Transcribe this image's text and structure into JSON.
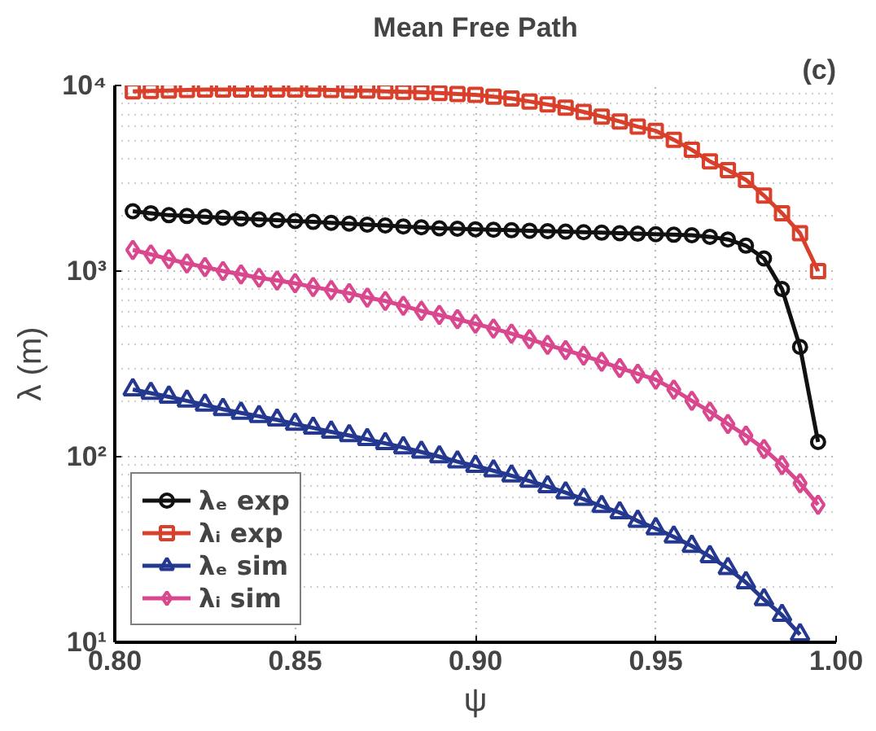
{
  "chart_data": {
    "type": "line",
    "title": "Mean Free Path",
    "xlabel": "ψ",
    "ylabel": "λ (m)",
    "annotations": [
      "(c)"
    ],
    "log": "y",
    "grid": true,
    "legend": "bottom left",
    "xlim": [
      0.8,
      1.0
    ],
    "ylim": [
      10,
      10000
    ],
    "xticks": [
      {
        "value": 0.8,
        "label": "0.80"
      },
      {
        "value": 0.85,
        "label": "0.85"
      },
      {
        "value": 0.9,
        "label": "0.90"
      },
      {
        "value": 0.95,
        "label": "0.95"
      },
      {
        "value": 1.0,
        "label": "1.00"
      }
    ],
    "yticks": [
      {
        "value": 10,
        "label": "10¹"
      },
      {
        "value": 100,
        "label": "10²"
      },
      {
        "value": 1000,
        "label": "10³"
      },
      {
        "value": 10000,
        "label": "10⁴"
      }
    ],
    "x": [
      0.805,
      0.81,
      0.815,
      0.82,
      0.825,
      0.83,
      0.835,
      0.84,
      0.845,
      0.85,
      0.855,
      0.86,
      0.865,
      0.87,
      0.875,
      0.88,
      0.885,
      0.89,
      0.895,
      0.9,
      0.905,
      0.91,
      0.915,
      0.92,
      0.925,
      0.93,
      0.935,
      0.94,
      0.945,
      0.95,
      0.955,
      0.96,
      0.965,
      0.97,
      0.975,
      0.98,
      0.985,
      0.99,
      0.995
    ],
    "series": [
      {
        "name": "λₑ exp",
        "color": "#111111",
        "marker": "circle",
        "values": [
          2100,
          2050,
          2000,
          1980,
          1960,
          1940,
          1920,
          1900,
          1880,
          1860,
          1840,
          1820,
          1800,
          1780,
          1760,
          1740,
          1720,
          1700,
          1690,
          1680,
          1670,
          1660,
          1650,
          1640,
          1630,
          1620,
          1610,
          1600,
          1590,
          1580,
          1570,
          1560,
          1530,
          1480,
          1370,
          1170,
          800,
          390,
          120
        ]
      },
      {
        "name": "λᵢ exp",
        "color": "#d9402b",
        "marker": "square",
        "values": [
          9300,
          9350,
          9400,
          9450,
          9500,
          9500,
          9500,
          9500,
          9500,
          9500,
          9500,
          9450,
          9400,
          9400,
          9300,
          9250,
          9200,
          9100,
          9000,
          8900,
          8700,
          8500,
          8200,
          7900,
          7600,
          7200,
          6800,
          6400,
          6000,
          5700,
          5100,
          4500,
          3900,
          3500,
          3100,
          2550,
          2050,
          1600,
          1000
        ]
      },
      {
        "name": "λₑ sim",
        "color": "#25388f",
        "marker": "triangle",
        "x": [
          0.805,
          0.81,
          0.815,
          0.82,
          0.825,
          0.83,
          0.835,
          0.84,
          0.845,
          0.85,
          0.855,
          0.86,
          0.865,
          0.87,
          0.875,
          0.88,
          0.885,
          0.89,
          0.895,
          0.9,
          0.905,
          0.91,
          0.915,
          0.92,
          0.925,
          0.93,
          0.935,
          0.94,
          0.945,
          0.95,
          0.955,
          0.96,
          0.965,
          0.97,
          0.975,
          0.98,
          0.985,
          0.99
        ],
        "values": [
          230,
          220,
          210,
          200,
          190,
          180,
          172,
          165,
          158,
          150,
          143,
          136,
          130,
          124,
          118,
          112,
          106,
          100,
          94,
          89,
          84,
          79,
          74,
          69,
          64,
          59,
          54,
          50,
          45,
          41,
          37,
          33,
          29,
          25,
          21,
          17,
          14,
          11
        ]
      },
      {
        "name": "λᵢ sim",
        "color": "#d9488f",
        "marker": "diamond",
        "values": [
          1300,
          1230,
          1160,
          1100,
          1050,
          1000,
          960,
          920,
          890,
          860,
          820,
          790,
          760,
          720,
          690,
          650,
          610,
          580,
          550,
          520,
          490,
          460,
          430,
          400,
          375,
          350,
          325,
          300,
          280,
          260,
          230,
          200,
          175,
          150,
          130,
          110,
          90,
          72,
          55
        ]
      }
    ]
  }
}
